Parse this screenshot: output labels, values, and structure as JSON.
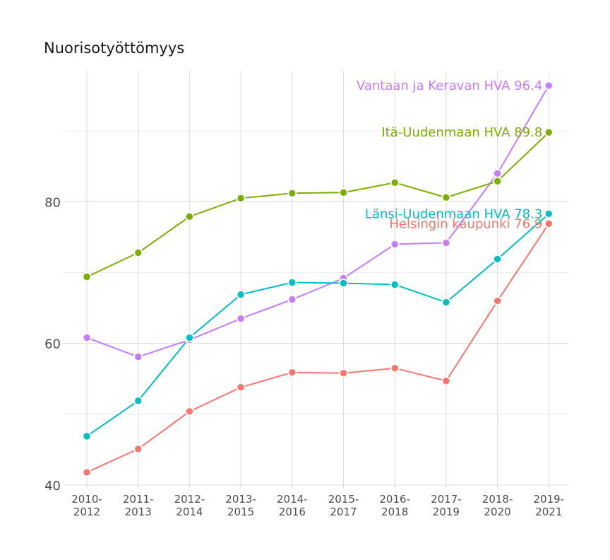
{
  "chart_data": {
    "type": "line",
    "title": "Nuorisotyöttömyys",
    "xlabel": "",
    "ylabel": "",
    "categories": [
      [
        "2010-",
        "2012"
      ],
      [
        "2011-",
        "2013"
      ],
      [
        "2012-",
        "2014"
      ],
      [
        "2013-",
        "2015"
      ],
      [
        "2014-",
        "2016"
      ],
      [
        "2015-",
        "2017"
      ],
      [
        "2016-",
        "2018"
      ],
      [
        "2017-",
        "2019"
      ],
      [
        "2018-",
        "2020"
      ],
      [
        "2019-",
        "2021"
      ]
    ],
    "ylim": [
      39.5,
      98.5
    ],
    "yticks": [
      40,
      60,
      80
    ],
    "grid": true,
    "legend": "none",
    "series": [
      {
        "name": "Vantaan ja Keravan HVA",
        "label": "Vantaan ja Keravan HVA 96.4",
        "color": "#C77CFF",
        "values": [
          60.8,
          58.1,
          60.5,
          63.5,
          66.2,
          69.2,
          74.0,
          74.2,
          84.0,
          96.4
        ]
      },
      {
        "name": "Itä-Uudenmaan HVA",
        "label": "Itä-Uudenmaan HVA 89.8",
        "color": "#7CAE00",
        "values": [
          69.4,
          72.8,
          77.9,
          80.5,
          81.2,
          81.3,
          82.7,
          80.6,
          82.9,
          89.8
        ]
      },
      {
        "name": "Länsi-Uudenmaan HVA",
        "label": "Länsi-Uudenmaan HVA 78.3",
        "color": "#00BFC4",
        "values": [
          46.9,
          51.9,
          60.8,
          66.9,
          68.6,
          68.5,
          68.3,
          65.8,
          71.9,
          78.3
        ]
      },
      {
        "name": "Helsingin kaupunki",
        "label": "Helsingin kaupunki 76.9",
        "color": "#F8766D",
        "values": [
          41.8,
          45.1,
          50.4,
          53.8,
          55.9,
          55.8,
          56.5,
          54.7,
          66.0,
          76.9
        ]
      }
    ]
  }
}
